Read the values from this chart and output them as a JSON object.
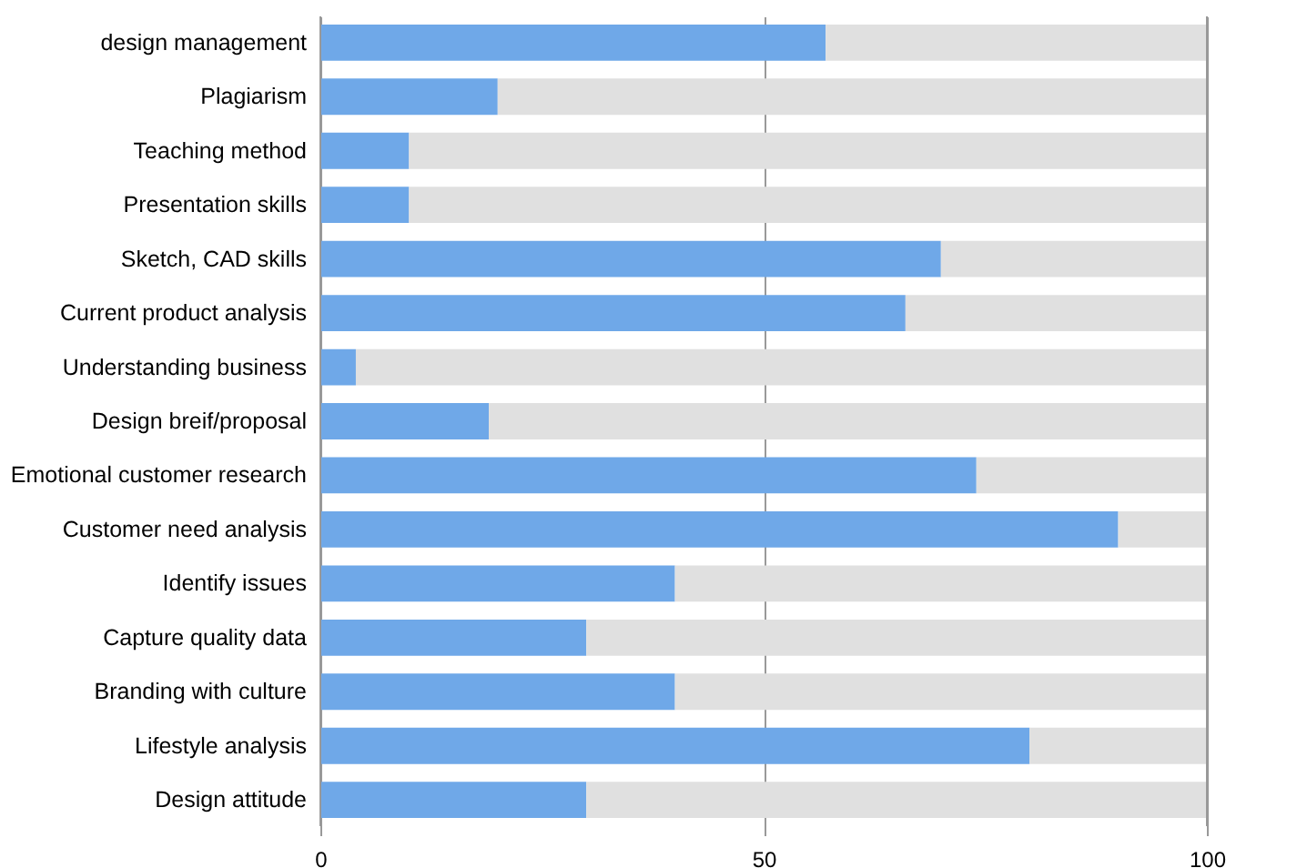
{
  "chart_data": {
    "type": "bar",
    "orientation": "horizontal",
    "stacked": true,
    "categories": [
      "design management",
      "Plagiarism",
      "Teaching method",
      "Presentation skills",
      "Sketch, CAD skills",
      "Current product analysis",
      "Understanding business",
      "Design breif/proposal",
      "Emotional customer research",
      "Customer need analysis",
      "Identify issues",
      "Capture quality data",
      "Branding with culture",
      "Lifestyle analysis",
      "Design attitude"
    ],
    "series": [
      {
        "color": "#6fa8e8",
        "values": [
          57,
          20,
          10,
          10,
          70,
          66,
          4,
          19,
          74,
          90,
          40,
          30,
          40,
          80,
          30
        ]
      },
      {
        "color": "#e0e0e0",
        "values": [
          43,
          80,
          90,
          90,
          30,
          34,
          96,
          81,
          26,
          10,
          60,
          70,
          60,
          20,
          70
        ]
      }
    ],
    "xlim": [
      0,
      100
    ],
    "xticks": [
      0,
      50,
      100
    ],
    "grid": "x"
  }
}
